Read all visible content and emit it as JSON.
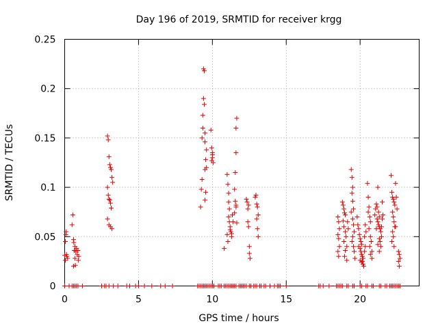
{
  "chart_data": {
    "type": "scatter",
    "title": "Day 196 of 2019, SRMTID for receiver krgg",
    "xlabel": "GPS time / hours",
    "ylabel": "SRMTID / TECUs",
    "xlim": [
      0,
      24
    ],
    "ylim": [
      0,
      0.25
    ],
    "grid": true,
    "marker": "+",
    "xticks": [
      "0",
      "5",
      "10",
      "15",
      "20"
    ],
    "yticks": [
      "0",
      "0.05",
      "0.1",
      "0.15",
      "0.2",
      "0.25"
    ],
    "xtick_values": [
      0,
      5,
      10,
      15,
      20
    ],
    "ytick_values": [
      0,
      0.05,
      0.1,
      0.15,
      0.2,
      0.25
    ],
    "series": [
      {
        "name": "SRMTID",
        "color": "#e00000",
        "points": [
          [
            0.0,
            0.031
          ],
          [
            0.05,
            0.045
          ],
          [
            0.08,
            0.052
          ],
          [
            0.1,
            0.055
          ],
          [
            0.12,
            0.032
          ],
          [
            0.15,
            0.03
          ],
          [
            0.2,
            0.028
          ],
          [
            0.05,
            0.026
          ],
          [
            0.5,
            0.062
          ],
          [
            0.55,
            0.072
          ],
          [
            0.6,
            0.047
          ],
          [
            0.62,
            0.044
          ],
          [
            0.65,
            0.036
          ],
          [
            0.7,
            0.028
          ],
          [
            0.72,
            0.021
          ],
          [
            0.75,
            0.035
          ],
          [
            0.8,
            0.038
          ],
          [
            0.85,
            0.032
          ],
          [
            0.9,
            0.036
          ],
          [
            0.92,
            0.026
          ],
          [
            0.95,
            0.03
          ],
          [
            0.6,
            0.02
          ],
          [
            0.7,
            0.04
          ],
          [
            2.9,
            0.152
          ],
          [
            2.95,
            0.148
          ],
          [
            3.0,
            0.131
          ],
          [
            3.05,
            0.123
          ],
          [
            3.1,
            0.12
          ],
          [
            3.15,
            0.118
          ],
          [
            3.2,
            0.11
          ],
          [
            3.25,
            0.105
          ],
          [
            2.9,
            0.1
          ],
          [
            2.95,
            0.092
          ],
          [
            3.0,
            0.088
          ],
          [
            3.05,
            0.087
          ],
          [
            3.1,
            0.084
          ],
          [
            3.15,
            0.079
          ],
          [
            2.9,
            0.068
          ],
          [
            3.0,
            0.062
          ],
          [
            3.1,
            0.06
          ],
          [
            3.2,
            0.058
          ],
          [
            9.2,
            0.08
          ],
          [
            9.25,
            0.098
          ],
          [
            9.3,
            0.108
          ],
          [
            9.3,
            0.15
          ],
          [
            9.35,
            0.16
          ],
          [
            9.35,
            0.173
          ],
          [
            9.4,
            0.22
          ],
          [
            9.45,
            0.218
          ],
          [
            9.4,
            0.19
          ],
          [
            9.45,
            0.184
          ],
          [
            9.5,
            0.155
          ],
          [
            9.5,
            0.146
          ],
          [
            9.55,
            0.128
          ],
          [
            9.5,
            0.118
          ],
          [
            9.55,
            0.095
          ],
          [
            9.5,
            0.087
          ],
          [
            9.6,
            0.138
          ],
          [
            9.6,
            0.12
          ],
          [
            9.9,
            0.158
          ],
          [
            9.95,
            0.14
          ],
          [
            10.0,
            0.135
          ],
          [
            10.0,
            0.13
          ],
          [
            10.05,
            0.125
          ],
          [
            9.95,
            0.127
          ],
          [
            10.0,
            0.133
          ],
          [
            10.8,
            0.038
          ],
          [
            11.0,
            0.052
          ],
          [
            11.0,
            0.113
          ],
          [
            11.05,
            0.103
          ],
          [
            11.1,
            0.094
          ],
          [
            11.1,
            0.085
          ],
          [
            11.15,
            0.078
          ],
          [
            11.1,
            0.07
          ],
          [
            11.15,
            0.065
          ],
          [
            11.2,
            0.06
          ],
          [
            11.2,
            0.057
          ],
          [
            11.25,
            0.055
          ],
          [
            11.3,
            0.053
          ],
          [
            11.05,
            0.045
          ],
          [
            11.3,
            0.05
          ],
          [
            11.35,
            0.072
          ],
          [
            11.4,
            0.065
          ],
          [
            11.5,
            0.098
          ],
          [
            11.55,
            0.086
          ],
          [
            11.6,
            0.08
          ],
          [
            11.5,
            0.074
          ],
          [
            11.6,
            0.082
          ],
          [
            11.55,
            0.115
          ],
          [
            11.6,
            0.135
          ],
          [
            11.65,
            0.17
          ],
          [
            11.6,
            0.16
          ],
          [
            11.65,
            0.064
          ],
          [
            12.3,
            0.088
          ],
          [
            12.35,
            0.085
          ],
          [
            12.4,
            0.078
          ],
          [
            12.4,
            0.065
          ],
          [
            12.45,
            0.06
          ],
          [
            12.5,
            0.04
          ],
          [
            12.5,
            0.033
          ],
          [
            12.55,
            0.028
          ],
          [
            12.45,
            0.082
          ],
          [
            12.9,
            0.09
          ],
          [
            12.95,
            0.092
          ],
          [
            13.0,
            0.083
          ],
          [
            13.05,
            0.08
          ],
          [
            13.1,
            0.072
          ],
          [
            13.0,
            0.068
          ],
          [
            13.05,
            0.058
          ],
          [
            13.1,
            0.05
          ],
          [
            18.5,
            0.07
          ],
          [
            18.55,
            0.065
          ],
          [
            18.6,
            0.058
          ],
          [
            18.5,
            0.052
          ],
          [
            18.55,
            0.048
          ],
          [
            18.6,
            0.04
          ],
          [
            18.5,
            0.035
          ],
          [
            18.55,
            0.03
          ],
          [
            18.8,
            0.085
          ],
          [
            18.85,
            0.082
          ],
          [
            18.9,
            0.078
          ],
          [
            18.95,
            0.074
          ],
          [
            19.0,
            0.072
          ],
          [
            18.85,
            0.066
          ],
          [
            18.9,
            0.06
          ],
          [
            19.0,
            0.055
          ],
          [
            19.05,
            0.05
          ],
          [
            18.9,
            0.045
          ],
          [
            19.1,
            0.04
          ],
          [
            19.0,
            0.036
          ],
          [
            18.95,
            0.03
          ],
          [
            19.1,
            0.026
          ],
          [
            19.15,
            0.065
          ],
          [
            19.2,
            0.058
          ],
          [
            19.4,
            0.118
          ],
          [
            19.45,
            0.11
          ],
          [
            19.5,
            0.1
          ],
          [
            19.45,
            0.094
          ],
          [
            19.5,
            0.086
          ],
          [
            19.55,
            0.078
          ],
          [
            19.4,
            0.075
          ],
          [
            19.5,
            0.068
          ],
          [
            19.55,
            0.062
          ],
          [
            19.6,
            0.055
          ],
          [
            19.5,
            0.05
          ],
          [
            19.45,
            0.045
          ],
          [
            19.55,
            0.04
          ],
          [
            19.6,
            0.035
          ],
          [
            19.65,
            0.028
          ],
          [
            19.8,
            0.07
          ],
          [
            19.85,
            0.062
          ],
          [
            19.9,
            0.058
          ],
          [
            19.95,
            0.052
          ],
          [
            20.0,
            0.048
          ],
          [
            20.05,
            0.045
          ],
          [
            20.1,
            0.042
          ],
          [
            19.9,
            0.04
          ],
          [
            20.0,
            0.038
          ],
          [
            20.05,
            0.035
          ],
          [
            20.1,
            0.032
          ],
          [
            20.15,
            0.03
          ],
          [
            20.2,
            0.028
          ],
          [
            20.0,
            0.026
          ],
          [
            20.1,
            0.024
          ],
          [
            20.2,
            0.022
          ],
          [
            20.25,
            0.02
          ],
          [
            20.15,
            0.025
          ],
          [
            20.3,
            0.035
          ],
          [
            20.35,
            0.04
          ],
          [
            20.3,
            0.05
          ],
          [
            20.4,
            0.055
          ],
          [
            20.35,
            0.062
          ],
          [
            20.5,
            0.104
          ],
          [
            20.55,
            0.09
          ],
          [
            20.6,
            0.08
          ],
          [
            20.55,
            0.075
          ],
          [
            20.65,
            0.07
          ],
          [
            20.7,
            0.065
          ],
          [
            20.6,
            0.058
          ],
          [
            20.7,
            0.05
          ],
          [
            20.75,
            0.045
          ],
          [
            20.65,
            0.04
          ],
          [
            20.8,
            0.035
          ],
          [
            20.7,
            0.032
          ],
          [
            20.8,
            0.028
          ],
          [
            21.0,
            0.072
          ],
          [
            21.05,
            0.078
          ],
          [
            21.1,
            0.083
          ],
          [
            21.15,
            0.08
          ],
          [
            21.2,
            0.1
          ],
          [
            21.25,
            0.075
          ],
          [
            21.3,
            0.07
          ],
          [
            21.15,
            0.068
          ],
          [
            21.2,
            0.065
          ],
          [
            21.25,
            0.062
          ],
          [
            21.3,
            0.06
          ],
          [
            21.35,
            0.058
          ],
          [
            21.4,
            0.055
          ],
          [
            21.45,
            0.05
          ],
          [
            21.3,
            0.048
          ],
          [
            21.35,
            0.045
          ],
          [
            21.2,
            0.042
          ],
          [
            21.4,
            0.04
          ],
          [
            21.3,
            0.035
          ],
          [
            21.45,
            0.06
          ],
          [
            21.5,
            0.068
          ],
          [
            21.55,
            0.072
          ],
          [
            21.5,
            0.085
          ],
          [
            21.1,
            0.058
          ],
          [
            22.1,
            0.112
          ],
          [
            22.15,
            0.095
          ],
          [
            22.2,
            0.09
          ],
          [
            22.25,
            0.088
          ],
          [
            22.3,
            0.085
          ],
          [
            22.35,
            0.082
          ],
          [
            22.4,
            0.104
          ],
          [
            22.45,
            0.09
          ],
          [
            22.2,
            0.075
          ],
          [
            22.25,
            0.07
          ],
          [
            22.3,
            0.065
          ],
          [
            22.35,
            0.06
          ],
          [
            22.2,
            0.055
          ],
          [
            22.25,
            0.05
          ],
          [
            22.15,
            0.045
          ],
          [
            22.3,
            0.04
          ],
          [
            22.4,
            0.06
          ],
          [
            22.5,
            0.078
          ],
          [
            22.6,
            0.035
          ],
          [
            22.65,
            0.032
          ],
          [
            22.7,
            0.028
          ],
          [
            22.6,
            0.025
          ],
          [
            22.65,
            0.02
          ]
        ],
        "zero_points_x": [
          0.0,
          0.3,
          0.5,
          0.6,
          0.7,
          0.8,
          0.9,
          1.2,
          2.5,
          2.7,
          2.8,
          3.0,
          3.3,
          3.6,
          4.2,
          4.4,
          4.8,
          5.0,
          5.4,
          5.9,
          6.5,
          6.8,
          7.3,
          9.0,
          9.1,
          9.2,
          9.3,
          9.4,
          9.5,
          9.6,
          9.7,
          9.8,
          9.9,
          10.0,
          10.1,
          10.4,
          10.5,
          10.6,
          10.8,
          10.9,
          11.0,
          11.1,
          11.2,
          11.3,
          11.4,
          11.5,
          11.6,
          11.8,
          11.9,
          12.0,
          12.1,
          12.2,
          12.3,
          12.5,
          12.6,
          12.8,
          12.9,
          13.0,
          13.2,
          13.3,
          13.5,
          13.6,
          13.9,
          14.2,
          14.4,
          14.5,
          14.6,
          15.0,
          17.2,
          17.3,
          17.5,
          17.9,
          18.4,
          18.5,
          18.6,
          18.7,
          18.8,
          19.1,
          19.2,
          19.5,
          19.6,
          20.0,
          20.1,
          20.4,
          20.5,
          20.8,
          20.9,
          21.3,
          21.4,
          21.7,
          21.8,
          22.0,
          22.1,
          22.2,
          22.3,
          22.4,
          22.5,
          22.6,
          22.7
        ]
      }
    ]
  }
}
